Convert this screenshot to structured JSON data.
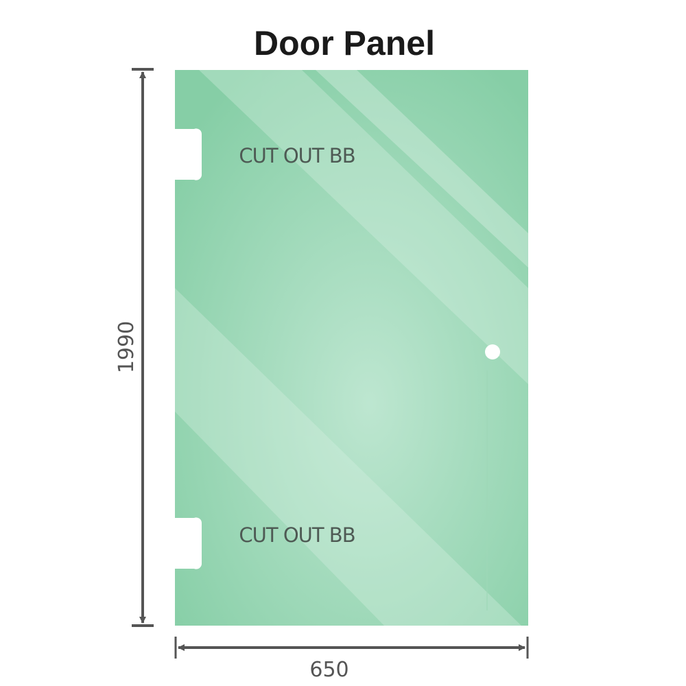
{
  "title": "Door Panel",
  "cutout_labels": [
    "CUT OUT BB",
    "CUT OUT BB"
  ],
  "dimensions": {
    "height": "1990",
    "width": "650"
  },
  "colors": {
    "glass": "#8fd2ae",
    "glass_highlight": "#bde6d0",
    "dimension_line": "#555555",
    "text": "#4e5a54"
  }
}
